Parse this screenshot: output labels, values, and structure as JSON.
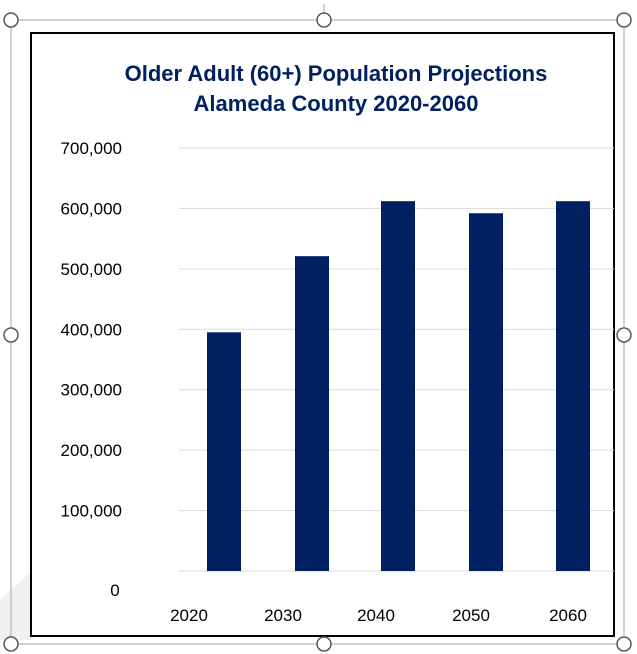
{
  "colors": {
    "bar": "#002060",
    "title": "#002060",
    "gridline": "#d9d9d9",
    "tick_text": "#000000",
    "frame": "#000000",
    "selection_outline": "#a6a6a6",
    "watermark": "#e6e6e6"
  },
  "icons": {
    "resize_handle": "circle-handle-icon"
  },
  "chart_data": {
    "type": "bar",
    "title": "Older Adult (60+) Population Projections",
    "subtitle": "Alameda County 2020-2060",
    "xlabel": "",
    "ylabel": "",
    "categories": [
      "2020",
      "2030",
      "2040",
      "2050",
      "2060"
    ],
    "values": [
      395000,
      521000,
      612000,
      592000,
      612000
    ],
    "ylim": [
      0,
      700000
    ],
    "yticks": [
      0,
      100000,
      200000,
      300000,
      400000,
      500000,
      600000,
      700000
    ],
    "ytick_labels": [
      "0",
      "100,000",
      "200,000",
      "300,000",
      "400,000",
      "500,000",
      "600,000",
      "700,000"
    ],
    "grid": true,
    "legend": "none"
  }
}
